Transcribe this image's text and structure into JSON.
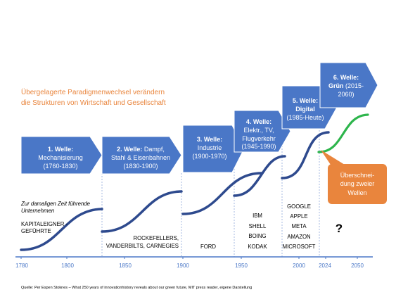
{
  "title": {
    "lines": [
      "Übergelagerte Paradigmenwechsel verändern",
      "die Strukturen von Wirtschaft und Gesellschaft"
    ]
  },
  "colors": {
    "title": "#E9853D",
    "wave_box": "#4A77C7",
    "curve": "#2E4A8E",
    "green_curve": "#2DB54C",
    "callout": "#E9853D",
    "axis": "#4A77C7",
    "guide": "#8EA9DB"
  },
  "waves": [
    {
      "head": "1. Welle:",
      "lines": [
        "Mechanisierung",
        "(1760-1830)"
      ]
    },
    {
      "head": "2. Welle:",
      "head_tail": "Dampf,",
      "lines": [
        "Stahl & Eisenbahnen",
        "(1830-1900)"
      ]
    },
    {
      "head": "3. Welle:",
      "lines": [
        "Industrie",
        "(1900-1970)"
      ]
    },
    {
      "head": "4. Welle:",
      "lines": [
        "Elektr., TV,",
        "Flugverkehr",
        "(1945-1990)"
      ]
    },
    {
      "head": "5. Welle:",
      "topic": "Digital",
      "lines": [
        "(1985-Heute)"
      ]
    },
    {
      "head": "6. Welle:",
      "topic": "Grün",
      "topic_tail": "(2015-",
      "lines": [
        "2060)"
      ]
    }
  ],
  "companies": {
    "intro": [
      "Zur damaligen Zeit führende",
      "Unternehmen"
    ],
    "wave1": [
      "KAPITALEIGNER -",
      "GEFÜHRTE"
    ],
    "wave2": [
      "ROCKEFELLERS,",
      "VANDERBILTS, CARNEGIES"
    ],
    "wave3": [
      "FORD"
    ],
    "wave4": [
      "IBM",
      "SHELL",
      "BOING",
      "KODAK"
    ],
    "wave5": [
      "GOOGLE",
      "APPLE",
      "META",
      "AMAZON",
      "MICROSOFT"
    ],
    "wave6": [
      "?"
    ]
  },
  "callout": {
    "lines": [
      "Überschnei-",
      "dung zweier",
      "Wellen"
    ]
  },
  "axis": {
    "ticks": [
      "1780",
      "1800",
      "1850",
      "1900",
      "1950",
      "2000",
      "2024",
      "2050"
    ]
  },
  "source": "Quelle: Per Espen Stoknes – What 250 years of innovationhistory reveals about our green future, MIT press reader, eigene Darstellung"
}
